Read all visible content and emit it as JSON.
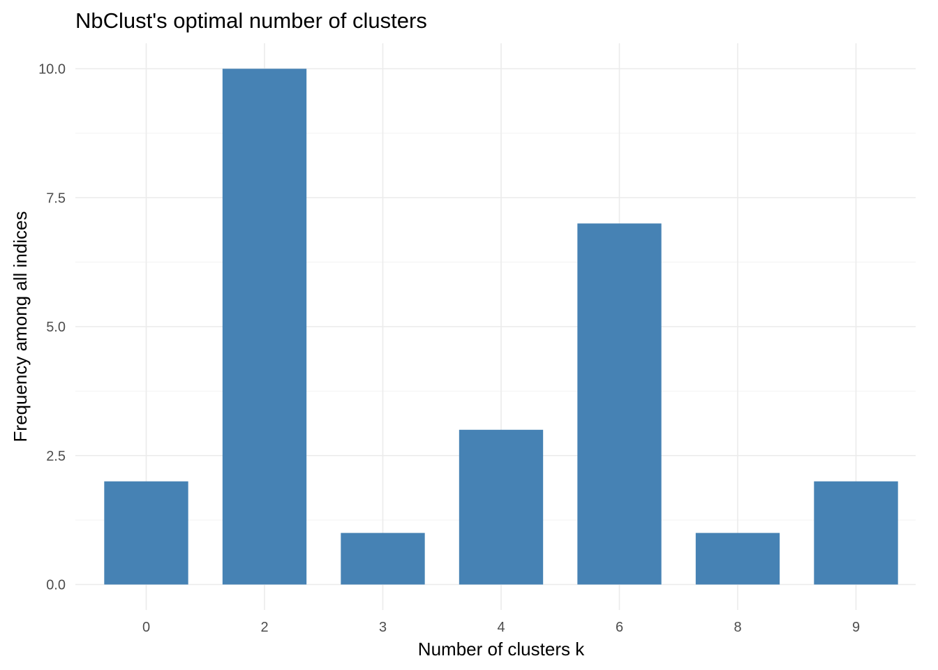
{
  "chart_data": {
    "type": "bar",
    "title": "NbClust's optimal number of clusters",
    "xlabel": "Number of clusters k",
    "ylabel": "Frequency among all indices",
    "categories": [
      "0",
      "2",
      "3",
      "4",
      "6",
      "8",
      "9"
    ],
    "values": [
      2,
      10,
      1,
      3,
      7,
      1,
      2
    ],
    "ylim": [
      0,
      10
    ],
    "yticks": [
      "0.0",
      "2.5",
      "5.0",
      "7.5",
      "10.0"
    ],
    "ytick_values": [
      0,
      2.5,
      5,
      7.5,
      10
    ],
    "ygrid_minor_values": [
      1.25,
      3.75,
      6.25,
      8.75
    ],
    "grid": true,
    "legend": "none",
    "bar_color": "#4682b4"
  }
}
